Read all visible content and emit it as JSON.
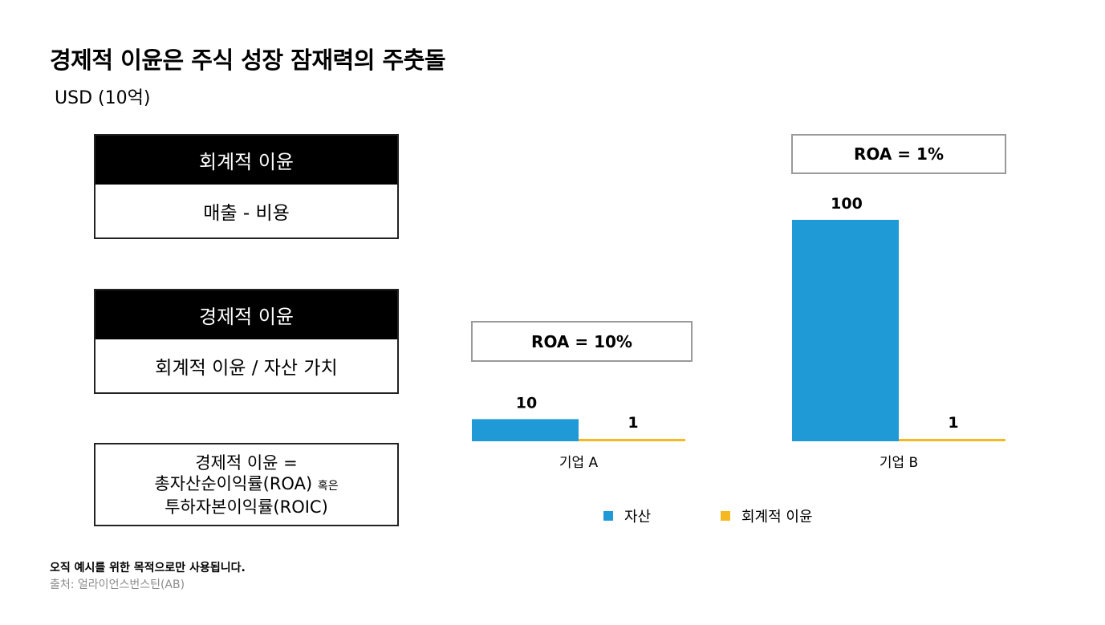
{
  "title": "경제적 이윤은 주식 성장 잠재력의 주춧돌",
  "unit": "USD (10억)",
  "definitions": [
    {
      "header": "회계적 이윤",
      "body": "매출 - 비용"
    },
    {
      "header": "경제적 이윤",
      "body": "회계적 이윤 / 자산 가치"
    }
  ],
  "formula": {
    "line1": "경제적 이윤 =",
    "line2": "총자산순이익률(ROA)",
    "line2_small": "혹은",
    "line3": "투하자본이익률(ROIC)"
  },
  "colors": {
    "assets": "#1f9ad6",
    "accounting_profit": "#f6b821"
  },
  "chart_data": {
    "type": "bar",
    "categories": [
      "기업 A",
      "기업 B"
    ],
    "series": [
      {
        "name": "자산",
        "values": [
          10,
          100
        ]
      },
      {
        "name": "회계적 이윤",
        "values": [
          1,
          1
        ]
      }
    ],
    "data_labels": [
      [
        "10",
        "100"
      ],
      [
        "1",
        "1"
      ]
    ],
    "annotations": [
      "ROA = 10%",
      "ROA = 1%"
    ],
    "ylim": [
      0,
      100
    ],
    "grid": false,
    "legend_position": "bottom"
  },
  "footer": {
    "note": "오직 예시를 위한 목적으로만 사용됩니다.",
    "source": "출처: 얼라이언스번스틴(AB)"
  }
}
